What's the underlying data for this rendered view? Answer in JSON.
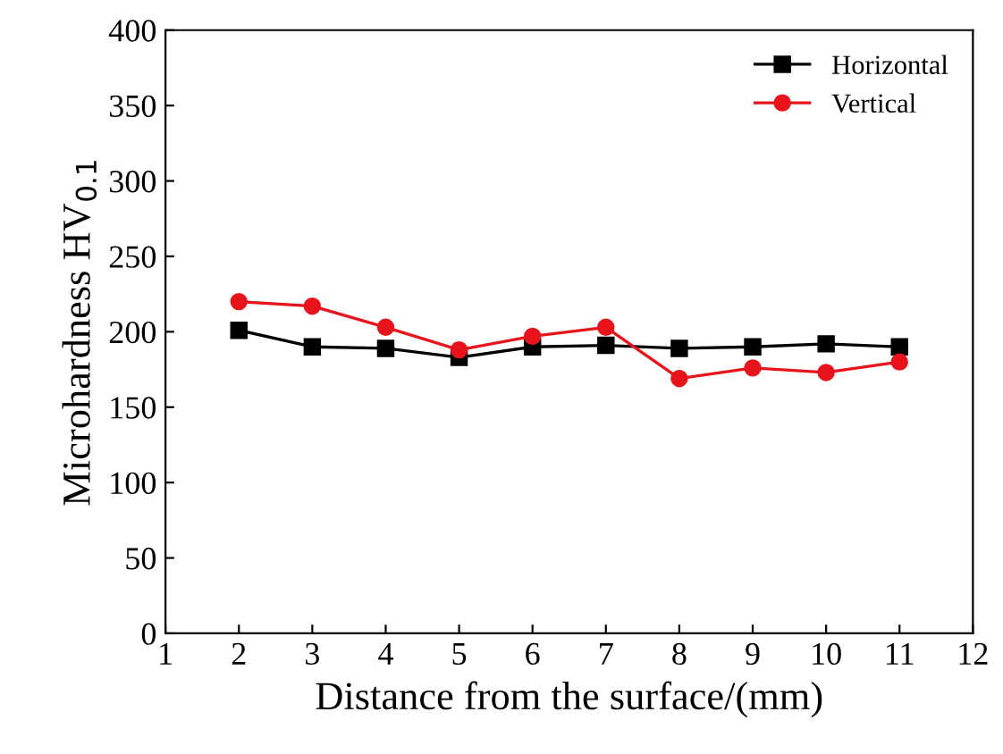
{
  "chart_data": {
    "type": "line",
    "xlabel": "Distance from the surface/(mm)",
    "ylabel": "Microhardness HV$_{0.1}$",
    "x": [
      2,
      3,
      4,
      5,
      6,
      7,
      8,
      9,
      10,
      11
    ],
    "series": [
      {
        "name": "Horizontal",
        "color": "#000000",
        "marker": "square",
        "values": [
          201,
          190,
          189,
          183,
          190,
          191,
          189,
          190,
          192,
          190
        ]
      },
      {
        "name": "Vertical",
        "color": "#e8141b",
        "marker": "circle",
        "values": [
          220,
          217,
          203,
          188,
          197,
          203,
          169,
          176,
          173,
          180
        ]
      }
    ],
    "xlim": [
      1,
      12
    ],
    "xticks": [
      1,
      2,
      3,
      4,
      5,
      6,
      7,
      8,
      9,
      10,
      11,
      12
    ],
    "ylim": [
      0,
      400
    ],
    "yticks": [
      0,
      50,
      100,
      150,
      200,
      250,
      300,
      350,
      400
    ],
    "grid": false,
    "legend": "top right",
    "line_style": "solid"
  }
}
